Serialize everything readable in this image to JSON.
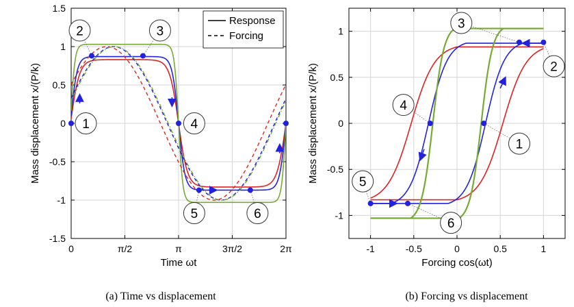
{
  "chart_data": [
    {
      "type": "line",
      "caption": "(a)  Time vs displacement",
      "xlabel": "Time ωt",
      "ylabel": "Mass displacement x/(P/k)",
      "xlim": [
        0,
        6.2832
      ],
      "ylim": [
        -1.5,
        1.5
      ],
      "x_ticks": [
        {
          "value": 0,
          "label": "0"
        },
        {
          "value": 1.5708,
          "label": "π/2"
        },
        {
          "value": 3.1416,
          "label": "π"
        },
        {
          "value": 4.7124,
          "label": "3π/2"
        },
        {
          "value": 6.2832,
          "label": "2π"
        }
      ],
      "y_ticks": [
        {
          "value": 1.5,
          "label": "1.5"
        },
        {
          "value": 1,
          "label": "1"
        },
        {
          "value": 0.5,
          "label": "0.5"
        },
        {
          "value": 0,
          "label": "0"
        },
        {
          "value": -0.5,
          "label": "-0.5"
        },
        {
          "value": -1,
          "label": "-1"
        },
        {
          "value": -1.5,
          "label": "-1.5"
        }
      ],
      "grid": true,
      "legend": {
        "placement": "top-right",
        "entries": [
          {
            "label": "Response",
            "style": "solid"
          },
          {
            "label": "Forcing",
            "style": "dashed"
          }
        ]
      },
      "series": [
        {
          "role": "response",
          "color": "#dd2222",
          "style": "solid",
          "plateau": 0.83,
          "edge_halfwidth": 0.42
        },
        {
          "role": "response",
          "color": "#2222dd",
          "style": "solid",
          "plateau": 0.87,
          "edge_halfwidth": 0.3
        },
        {
          "role": "response",
          "color": "#77aa33",
          "style": "solid",
          "plateau": 1.03,
          "edge_halfwidth": 0.2
        },
        {
          "role": "forcing",
          "color": "#dd2222",
          "style": "dashed",
          "phase": 0.53
        },
        {
          "role": "forcing",
          "color": "#2222dd",
          "style": "dashed",
          "phase": 0.33
        },
        {
          "role": "forcing",
          "color": "#77aa33",
          "style": "dash-dot",
          "phase": 0.3
        }
      ],
      "markers": [
        {
          "x": 0,
          "y": 0
        },
        {
          "x": 0.6,
          "y": 0.88
        },
        {
          "x": 2.1,
          "y": 0.88
        },
        {
          "x": 3.1416,
          "y": 0
        },
        {
          "x": 3.74,
          "y": -0.87
        },
        {
          "x": 5.24,
          "y": -0.87
        },
        {
          "x": 6.2832,
          "y": 0
        }
      ],
      "arrows": [
        {
          "x": 0.25,
          "y": 0.35,
          "dir": "up"
        },
        {
          "x": 2.95,
          "y": 0.25,
          "dir": "down"
        },
        {
          "x": 4.2,
          "y": -0.87,
          "dir": "right"
        },
        {
          "x": 6.1,
          "y": -0.3,
          "dir": "up"
        }
      ],
      "labels": [
        {
          "text": "1",
          "x": 0.43,
          "y": 0
        },
        {
          "text": "2",
          "x": 0.25,
          "y": 1.21
        },
        {
          "text": "3",
          "x": 2.6,
          "y": 1.21
        },
        {
          "text": "4",
          "x": 3.6,
          "y": 0
        },
        {
          "text": "5",
          "x": 3.6,
          "y": -1.17
        },
        {
          "text": "6",
          "x": 5.45,
          "y": -1.17
        }
      ]
    },
    {
      "type": "line",
      "caption": "(b)  Forcing vs displacement",
      "xlabel": "Forcing  cos(ωt)",
      "ylabel": "Mass displacement x/(P/k)",
      "xlim": [
        -1.25,
        1.25
      ],
      "ylim": [
        -1.25,
        1.25
      ],
      "x_ticks": [
        {
          "value": -1,
          "label": "-1"
        },
        {
          "value": -0.5,
          "label": "-0.5"
        },
        {
          "value": 0,
          "label": "0"
        },
        {
          "value": 0.5,
          "label": "0.5"
        },
        {
          "value": 1,
          "label": "1"
        }
      ],
      "y_ticks": [
        {
          "value": 1,
          "label": "1"
        },
        {
          "value": 0.5,
          "label": "0.5"
        },
        {
          "value": 0,
          "label": "0"
        },
        {
          "value": -0.5,
          "label": "-0.5"
        },
        {
          "value": -1,
          "label": "-1"
        }
      ],
      "grid": true,
      "series": [
        {
          "color": "#dd2222",
          "plateau": 0.83,
          "switch": 0.53,
          "width": 0.27
        },
        {
          "color": "#2222dd",
          "plateau": 0.87,
          "switch": 0.33,
          "width": 0.22
        },
        {
          "color": "#77aa33",
          "plateau": 1.03,
          "switch": 0.28,
          "width": 0.13
        }
      ],
      "markers": [
        {
          "x": 0.31,
          "y": 0
        },
        {
          "x": 0.72,
          "y": 0.88
        },
        {
          "x": 1,
          "y": 0.88
        },
        {
          "x": -0.31,
          "y": 0
        },
        {
          "x": -0.57,
          "y": -0.87
        },
        {
          "x": -1,
          "y": -0.87
        }
      ],
      "labels": [
        {
          "text": "1",
          "x": 0.72,
          "y": -0.22
        },
        {
          "text": "2",
          "x": 1.12,
          "y": 0.62
        },
        {
          "text": "3",
          "x": 0.05,
          "y": 1.09
        },
        {
          "text": "4",
          "x": -0.62,
          "y": 0.2
        },
        {
          "text": "5",
          "x": -1.09,
          "y": -0.63
        },
        {
          "text": "6",
          "x": -0.07,
          "y": -1.08
        }
      ]
    }
  ]
}
